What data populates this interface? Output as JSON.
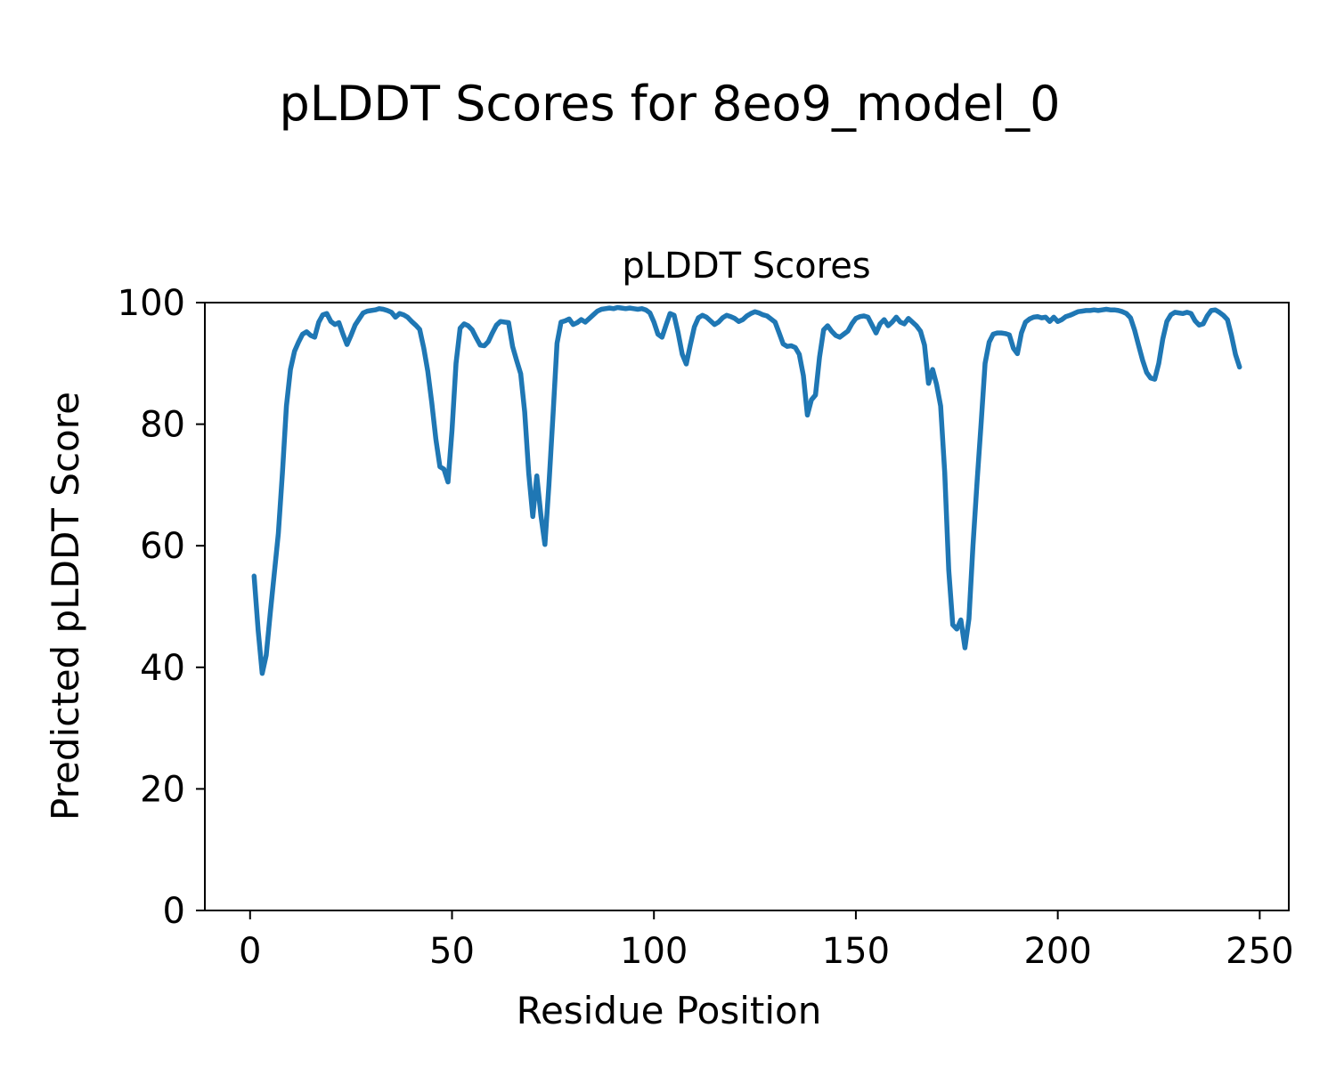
{
  "figure_title": "pLDDT Scores for 8eo9_model_0",
  "chart_data": {
    "type": "line",
    "title": "pLDDT Scores",
    "xlabel": "Residue Position",
    "ylabel": "Predicted pLDDT Score",
    "x_ticks": [
      0,
      50,
      100,
      150,
      200,
      250
    ],
    "y_ticks": [
      0,
      20,
      40,
      60,
      80,
      100
    ],
    "xlim": [
      -11.2,
      257.2
    ],
    "ylim": [
      0,
      100
    ],
    "grid": false,
    "legend": "none",
    "line_color": "#1f77b4",
    "series": [
      {
        "name": "pLDDT",
        "x_start": 1,
        "x_step": 1,
        "values": [
          55,
          46,
          39,
          42,
          49,
          55.5,
          62,
          72,
          83,
          89,
          92,
          93.5,
          94.8,
          95.2,
          94.6,
          94.3,
          96.8,
          98,
          98.2,
          96.9,
          96.4,
          96.7,
          94.8,
          93.1,
          94.6,
          96.3,
          97.3,
          98.3,
          98.6,
          98.7,
          98.8,
          99,
          98.9,
          98.7,
          98.4,
          97.6,
          98.2,
          98,
          97.6,
          96.9,
          96.3,
          95.6,
          92.5,
          88.7,
          83.5,
          77.5,
          73,
          72.6,
          70.5,
          79,
          90,
          95.8,
          96.5,
          96.2,
          95.5,
          94.2,
          93,
          92.9,
          93.6,
          95,
          96.3,
          96.9,
          96.8,
          96.7,
          92.8,
          90.5,
          88.3,
          82,
          72,
          64.8,
          71.5,
          65,
          60.2,
          70,
          81.5,
          93.3,
          96.8,
          97,
          97.3,
          96.4,
          96.7,
          97.2,
          96.8,
          97.4,
          98,
          98.6,
          98.9,
          99,
          99.1,
          99,
          99.2,
          99.1,
          99,
          99.1,
          99,
          98.9,
          99,
          98.8,
          98.3,
          96.8,
          94.8,
          94.3,
          96.3,
          98.2,
          97.9,
          95,
          91.5,
          89.9,
          93,
          96,
          97.5,
          97.9,
          97.6,
          97,
          96.4,
          96.8,
          97.5,
          97.9,
          97.7,
          97.4,
          96.9,
          97.2,
          97.8,
          98.2,
          98.5,
          98.3,
          98,
          97.8,
          97.3,
          96.8,
          95,
          93.2,
          92.8,
          92.9,
          92.6,
          91.5,
          88,
          81.5,
          84,
          84.8,
          91,
          95.5,
          96.2,
          95.3,
          94.6,
          94.3,
          94.8,
          95.3,
          96.5,
          97.4,
          97.7,
          97.8,
          97.6,
          96.3,
          95,
          96.5,
          97.2,
          96.2,
          96.8,
          97.6,
          96.8,
          96.5,
          97.4,
          96.8,
          96.2,
          95.3,
          93,
          86.7,
          89,
          86.5,
          83,
          72,
          56,
          47,
          46.3,
          47.8,
          43.2,
          48,
          60,
          70.5,
          80,
          90,
          93.5,
          94.8,
          95,
          95,
          94.9,
          94.7,
          92.5,
          91.6,
          95,
          96.8,
          97.3,
          97.6,
          97.7,
          97.5,
          97.6,
          96.9,
          97.6,
          96.9,
          97.2,
          97.7,
          97.9,
          98.2,
          98.5,
          98.6,
          98.7,
          98.7,
          98.8,
          98.7,
          98.8,
          98.9,
          98.8,
          98.8,
          98.7,
          98.5,
          98.2,
          97.5,
          95.5,
          93,
          90.5,
          88.5,
          87.6,
          87.4,
          90,
          94,
          96.9,
          98,
          98.4,
          98.3,
          98.2,
          98.4,
          98.2,
          97,
          96.3,
          96.5,
          97.8,
          98.7,
          98.8,
          98.4,
          97.9,
          97.2,
          94.6,
          91.5,
          89.4
        ]
      }
    ]
  }
}
